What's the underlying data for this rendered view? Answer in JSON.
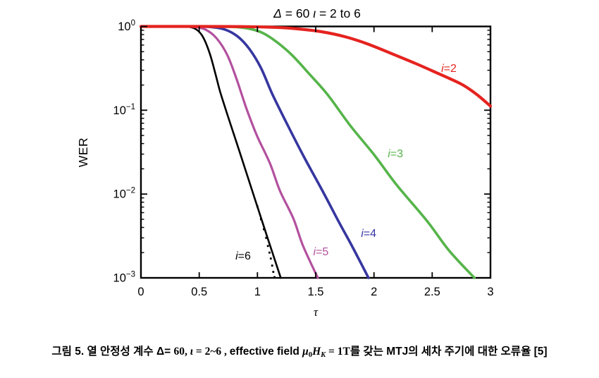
{
  "figure": {
    "title_parts": [
      {
        "t": "Δ",
        "italic": true
      },
      {
        "t": " = 60 ",
        "italic": false
      },
      {
        "t": "ι",
        "italic": true
      },
      {
        "t": " = 2 to 6",
        "italic": false
      }
    ],
    "ylabel": "WER",
    "xlabel": "τ"
  },
  "chart_data": {
    "type": "line",
    "title": "Δ = 60 ι = 2 to 6",
    "xlabel": "τ",
    "ylabel": "WER",
    "x_axis": {
      "min": 0,
      "max": 3,
      "ticks": [
        0,
        0.5,
        1,
        1.5,
        2,
        2.5,
        3
      ],
      "tick_labels": [
        "0",
        "0.5",
        "1",
        "1.5",
        "2",
        "2.5",
        "3"
      ]
    },
    "y_axis": {
      "scale": "log",
      "min": 0.001,
      "max": 1,
      "tick_exponents": [
        0,
        -1,
        -2,
        -3
      ],
      "tick_labels": [
        {
          "base": "10",
          "exp": "0"
        },
        {
          "base": "10",
          "exp": "−1"
        },
        {
          "base": "10",
          "exp": "−2"
        },
        {
          "base": "10",
          "exp": "−3"
        }
      ]
    },
    "legend_position": "inline-labels",
    "grid": false,
    "series": [
      {
        "name": "i6",
        "label_i": "i",
        "label_rest": "=6",
        "color": "#000000",
        "width": 2.6,
        "jitter": 0,
        "label_pos": {
          "tau": 0.877,
          "wer": 0.00182
        },
        "points": [
          [
            0,
            1.0
          ],
          [
            0.3,
            1.0
          ],
          [
            0.4,
            0.99
          ],
          [
            0.47,
            0.93
          ],
          [
            0.53,
            0.76
          ],
          [
            0.59,
            0.48
          ],
          [
            0.64,
            0.27
          ],
          [
            0.68,
            0.166
          ],
          [
            0.75,
            0.082
          ],
          [
            0.85,
            0.031
          ],
          [
            0.95,
            0.0115
          ],
          [
            1.05,
            0.0043
          ],
          [
            1.12,
            0.00217
          ],
          [
            1.2,
            0.001
          ]
        ]
      },
      {
        "name": "i5",
        "label_i": "i",
        "label_rest": "=5",
        "color": "#b3509e",
        "width": 3.2,
        "jitter": 1.4,
        "label_pos": {
          "tau": 1.545,
          "wer": 0.00205
        },
        "points": [
          [
            0,
            1.0
          ],
          [
            0.33,
            1.0
          ],
          [
            0.46,
            0.985
          ],
          [
            0.56,
            0.91
          ],
          [
            0.65,
            0.72
          ],
          [
            0.74,
            0.46
          ],
          [
            0.82,
            0.24
          ],
          [
            0.9,
            0.107
          ],
          [
            1.0,
            0.05
          ],
          [
            1.1,
            0.0234
          ],
          [
            1.2,
            0.011
          ],
          [
            1.3,
            0.0051
          ],
          [
            1.4,
            0.0024
          ],
          [
            1.51,
            0.001
          ]
        ]
      },
      {
        "name": "i4",
        "label_i": "i",
        "label_rest": "=4",
        "color": "#3636a0",
        "width": 3.6,
        "jitter": 0.9,
        "label_pos": {
          "tau": 1.954,
          "wer": 0.0034
        },
        "points": [
          [
            0,
            1.0
          ],
          [
            0.42,
            1.0
          ],
          [
            0.6,
            0.985
          ],
          [
            0.72,
            0.92
          ],
          [
            0.83,
            0.76
          ],
          [
            0.93,
            0.54
          ],
          [
            1.03,
            0.32
          ],
          [
            1.13,
            0.158
          ],
          [
            1.25,
            0.069
          ],
          [
            1.4,
            0.028
          ],
          [
            1.55,
            0.0114
          ],
          [
            1.7,
            0.0046
          ],
          [
            1.82,
            0.0023
          ],
          [
            1.95,
            0.001
          ]
        ]
      },
      {
        "name": "i3",
        "label_i": "i",
        "label_rest": "=3",
        "color": "#56b44a",
        "width": 3.6,
        "jitter": 0.8,
        "label_pos": {
          "tau": 2.184,
          "wer": 0.0303
        },
        "points": [
          [
            0,
            1.0
          ],
          [
            0.55,
            1.0
          ],
          [
            0.78,
            0.99
          ],
          [
            0.93,
            0.94
          ],
          [
            1.05,
            0.83
          ],
          [
            1.17,
            0.645
          ],
          [
            1.3,
            0.45
          ],
          [
            1.45,
            0.27
          ],
          [
            1.6,
            0.152
          ],
          [
            1.8,
            0.066
          ],
          [
            2.0,
            0.029
          ],
          [
            2.2,
            0.0128
          ],
          [
            2.45,
            0.0048
          ],
          [
            2.65,
            0.0021
          ],
          [
            2.86,
            0.001
          ]
        ]
      },
      {
        "name": "i2",
        "label_i": "i",
        "label_rest": "=2",
        "color": "#e5231f",
        "width": 4.2,
        "jitter": 0,
        "label_pos": {
          "tau": 2.643,
          "wer": 0.316
        },
        "points": [
          [
            0,
            1.0
          ],
          [
            0.5,
            1.0
          ],
          [
            0.9,
            0.995
          ],
          [
            1.15,
            0.975
          ],
          [
            1.35,
            0.935
          ],
          [
            1.55,
            0.865
          ],
          [
            1.75,
            0.755
          ],
          [
            1.95,
            0.615
          ],
          [
            2.15,
            0.475
          ],
          [
            2.35,
            0.365
          ],
          [
            2.55,
            0.275
          ],
          [
            2.75,
            0.205
          ],
          [
            2.88,
            0.155
          ],
          [
            3.0,
            0.112
          ]
        ]
      }
    ],
    "scatter_series": {
      "name": "i6-data",
      "color": "#000000",
      "marker": "square",
      "points": [
        [
          1.0,
          0.0071
        ],
        [
          1.03,
          0.005
        ],
        [
          1.055,
          0.0038
        ],
        [
          1.075,
          0.003
        ],
        [
          1.09,
          0.0024
        ],
        [
          1.103,
          0.002
        ],
        [
          1.115,
          0.0017
        ],
        [
          1.126,
          0.0014
        ],
        [
          1.136,
          0.00118
        ],
        [
          1.146,
          0.00102
        ]
      ]
    }
  },
  "caption": {
    "segments": [
      {
        "text": "그림 5. 열 안정성 계수 Δ= ",
        "kind": "kr"
      },
      {
        "text": "60, ",
        "kind": "math"
      },
      {
        "text": "ι",
        "kind": "mathi"
      },
      {
        "text": " = 2~6 , ",
        "kind": "math"
      },
      {
        "text": "effective field ",
        "kind": "kr"
      },
      {
        "text": "μ",
        "kind": "mathi"
      },
      {
        "text": "0",
        "kind": "sub"
      },
      {
        "text": "H",
        "kind": "mathi"
      },
      {
        "text": "K",
        "kind": "subi"
      },
      {
        "text": " = ",
        "kind": "math"
      },
      {
        "text": "1T",
        "kind": "math"
      },
      {
        "text": "를 갖는 MTJ의 세차 주기에 대한 오류율 [5]",
        "kind": "kr"
      }
    ]
  },
  "colors": {
    "axis": "#000000",
    "background": "#ffffff",
    "text": "#000000"
  }
}
